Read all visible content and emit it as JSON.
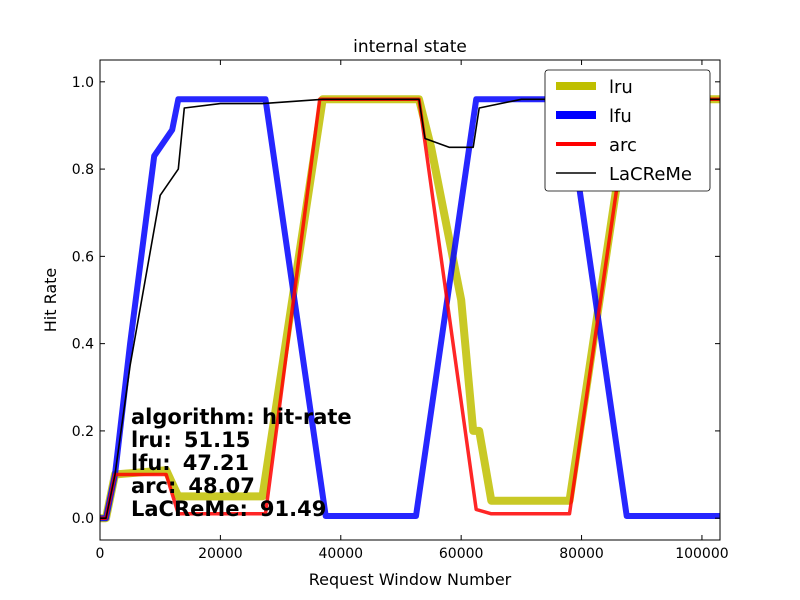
{
  "chart_data": {
    "type": "line",
    "title": "internal state",
    "xlabel": "Request Window Number",
    "ylabel": "Hit Rate",
    "xlim": [
      0,
      103000
    ],
    "ylim": [
      -0.05,
      1.05
    ],
    "xticks": [
      0,
      20000,
      40000,
      60000,
      80000,
      100000
    ],
    "xtick_labels": [
      "0",
      "20000",
      "40000",
      "60000",
      "80000",
      "100000"
    ],
    "yticks": [
      0.0,
      0.2,
      0.4,
      0.6,
      0.8,
      1.0
    ],
    "ytick_labels": [
      "0.0",
      "0.2",
      "0.4",
      "0.6",
      "0.8",
      "1.0"
    ],
    "grid": false,
    "legend_position": "top-right",
    "series": [
      {
        "name": "lru",
        "color": "#bfbf00",
        "points": [
          [
            0,
            0
          ],
          [
            1000,
            0
          ],
          [
            2500,
            0.1
          ],
          [
            11000,
            0.11
          ],
          [
            13000,
            0.05
          ],
          [
            27000,
            0.05
          ],
          [
            37000,
            0.96
          ],
          [
            53000,
            0.96
          ],
          [
            55000,
            0.85
          ],
          [
            60000,
            0.5
          ],
          [
            62000,
            0.2
          ],
          [
            63000,
            0.2
          ],
          [
            65000,
            0.04
          ],
          [
            78000,
            0.04
          ],
          [
            88000,
            0.96
          ],
          [
            103000,
            0.96
          ]
        ]
      },
      {
        "name": "lfu",
        "color": "#0000ff",
        "points": [
          [
            0,
            0
          ],
          [
            1000,
            0
          ],
          [
            2500,
            0.1
          ],
          [
            5000,
            0.4
          ],
          [
            9000,
            0.83
          ],
          [
            12000,
            0.89
          ],
          [
            13000,
            0.96
          ],
          [
            27500,
            0.96
          ],
          [
            37500,
            0.005
          ],
          [
            52500,
            0.005
          ],
          [
            62500,
            0.96
          ],
          [
            77500,
            0.96
          ],
          [
            87500,
            0.005
          ],
          [
            103000,
            0.005
          ]
        ]
      },
      {
        "name": "arc",
        "color": "#ff0000",
        "points": [
          [
            0,
            0
          ],
          [
            1000,
            0
          ],
          [
            2500,
            0.1
          ],
          [
            11000,
            0.1
          ],
          [
            13000,
            0.01
          ],
          [
            27500,
            0.01
          ],
          [
            36500,
            0.96
          ],
          [
            53000,
            0.96
          ],
          [
            62500,
            0.02
          ],
          [
            65000,
            0.01
          ],
          [
            78000,
            0.01
          ],
          [
            88000,
            0.96
          ],
          [
            103000,
            0.96
          ]
        ]
      },
      {
        "name": "LaCReMe",
        "color": "#000000",
        "points": [
          [
            0,
            0
          ],
          [
            1000,
            0
          ],
          [
            2500,
            0.1
          ],
          [
            5000,
            0.35
          ],
          [
            10000,
            0.74
          ],
          [
            13000,
            0.8
          ],
          [
            14000,
            0.94
          ],
          [
            20000,
            0.95
          ],
          [
            27000,
            0.95
          ],
          [
            37000,
            0.96
          ],
          [
            53000,
            0.96
          ],
          [
            54000,
            0.87
          ],
          [
            58000,
            0.85
          ],
          [
            62000,
            0.85
          ],
          [
            63000,
            0.94
          ],
          [
            70000,
            0.96
          ],
          [
            85000,
            0.96
          ],
          [
            103000,
            0.96
          ]
        ]
      }
    ],
    "annotation": {
      "header": "algorithm:  hit-rate",
      "rows": [
        {
          "label": "lru:",
          "value": "51.15"
        },
        {
          "label": "lfu:",
          "value": "47.21"
        },
        {
          "label": "arc:",
          "value": "48.07"
        },
        {
          "label": "LaCReMe:",
          "value": "91.49"
        }
      ]
    }
  }
}
